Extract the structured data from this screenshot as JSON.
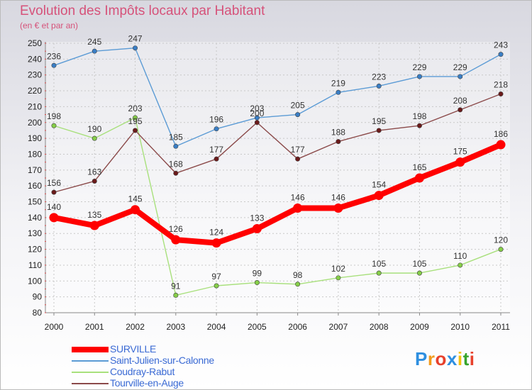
{
  "chart_data": {
    "type": "line",
    "title": "Evolution des Impôts locaux par Habitant",
    "subtitle": "(en € et par an)",
    "xlabel": "",
    "ylabel": "",
    "grid": true,
    "ylim": [
      80,
      250
    ],
    "y_ticks": [
      80,
      90,
      100,
      110,
      120,
      130,
      140,
      150,
      160,
      170,
      180,
      190,
      200,
      210,
      220,
      230,
      240,
      250
    ],
    "x": [
      "2000",
      "2001",
      "2002",
      "2003",
      "2004",
      "2005",
      "2006",
      "2007",
      "2008",
      "2009",
      "2010",
      "2011"
    ],
    "series": [
      {
        "name": "Saint-Julien-sur-Calonne",
        "color": "#5b9bd5",
        "point_color": "#3a7ec5",
        "values": [
          236,
          245,
          247,
          185,
          196,
          203,
          205,
          219,
          223,
          229,
          229,
          243
        ]
      },
      {
        "name": "Coudray-Rabut",
        "color": "#a8e07c",
        "point_color": "#86cf48",
        "values": [
          198,
          190,
          203,
          91,
          97,
          99,
          98,
          102,
          105,
          105,
          110,
          120
        ]
      },
      {
        "name": "Tourville-en-Auge",
        "color": "#8b4a4a",
        "point_color": "#6b1a1a",
        "values": [
          156,
          163,
          195,
          168,
          177,
          200,
          177,
          188,
          195,
          198,
          208,
          218
        ]
      },
      {
        "name": "SURVILLE",
        "color": "#ff0000",
        "point_color": "#ff0000",
        "values": [
          140,
          135,
          145,
          126,
          124,
          133,
          146,
          146,
          154,
          165,
          175,
          186
        ]
      }
    ],
    "legend": {
      "position": "bottom-left",
      "order": [
        "SURVILLE",
        "Saint-Julien-sur-Calonne",
        "Coudray-Rabut",
        "Tourville-en-Auge"
      ]
    }
  },
  "logo": {
    "letters": [
      "P",
      "r",
      "o",
      "x",
      "i",
      "t",
      "i"
    ],
    "colors": [
      "#2e8fe0",
      "#f39b1b",
      "#e8412c",
      "#2e8fe0",
      "#f4c20d",
      "#38a52e",
      "#e8412c"
    ]
  }
}
